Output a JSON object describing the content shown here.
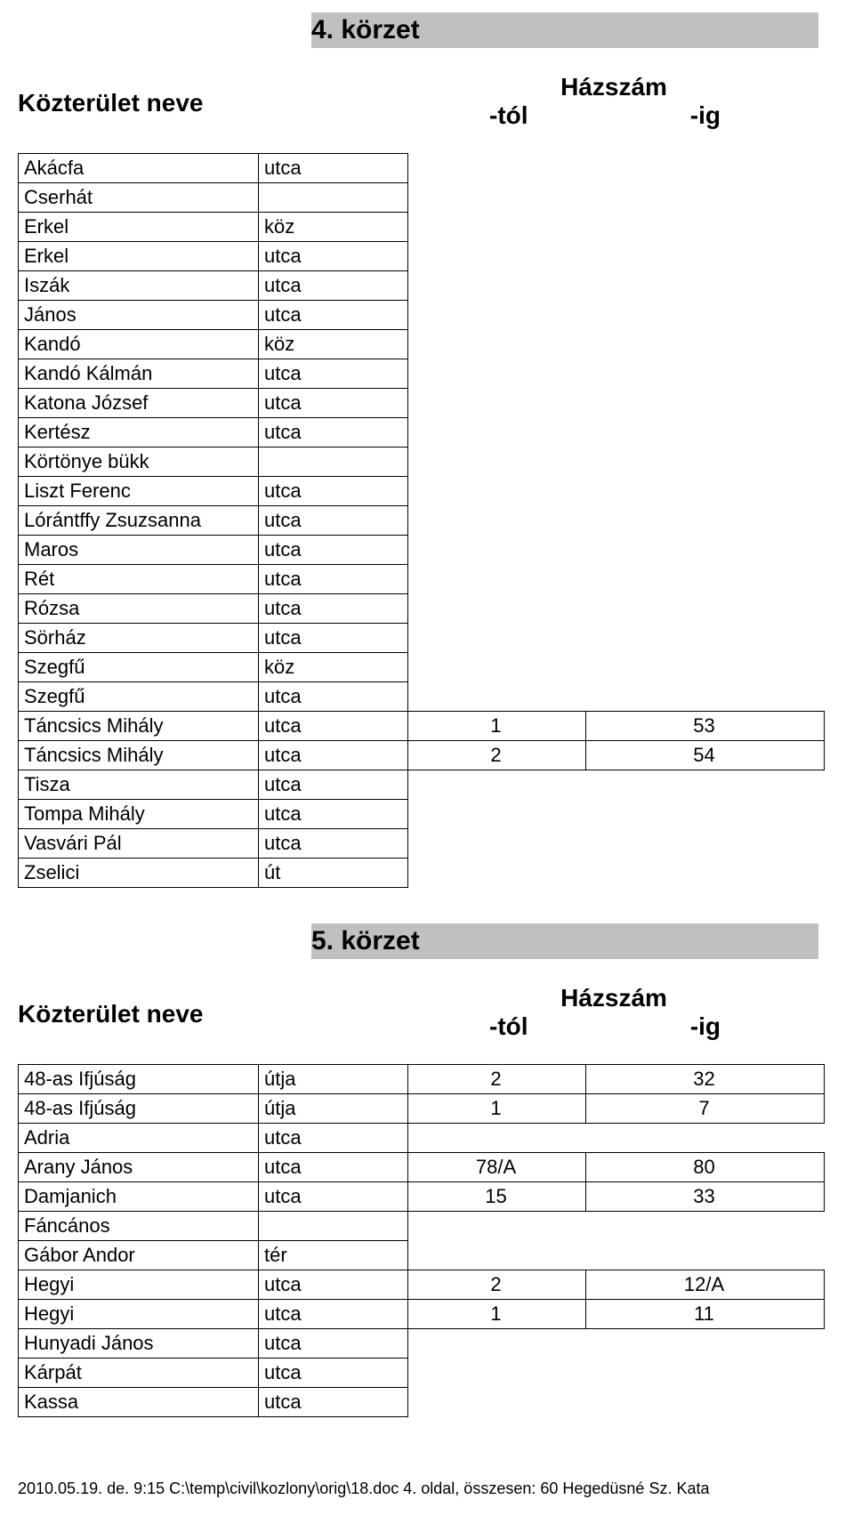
{
  "section1": {
    "title": "4. körzet",
    "heading_left": "Közterület neve",
    "heading_right_top": "Házszám",
    "heading_right_from": "-tól",
    "heading_right_to": "-ig",
    "rows": [
      {
        "name": "Akácfa",
        "type": "utca",
        "from": "",
        "to": ""
      },
      {
        "name": "Cserhát",
        "type": "",
        "from": "",
        "to": ""
      },
      {
        "name": "Erkel",
        "type": "köz",
        "from": "",
        "to": ""
      },
      {
        "name": "Erkel",
        "type": "utca",
        "from": "",
        "to": ""
      },
      {
        "name": "Iszák",
        "type": "utca",
        "from": "",
        "to": ""
      },
      {
        "name": "János",
        "type": "utca",
        "from": "",
        "to": ""
      },
      {
        "name": "Kandó",
        "type": "köz",
        "from": "",
        "to": ""
      },
      {
        "name": "Kandó Kálmán",
        "type": "utca",
        "from": "",
        "to": ""
      },
      {
        "name": "Katona József",
        "type": "utca",
        "from": "",
        "to": ""
      },
      {
        "name": "Kertész",
        "type": "utca",
        "from": "",
        "to": ""
      },
      {
        "name": "Körtönye bükk",
        "type": "",
        "from": "",
        "to": ""
      },
      {
        "name": "Liszt Ferenc",
        "type": "utca",
        "from": "",
        "to": ""
      },
      {
        "name": "Lórántffy Zsuzsanna",
        "type": "utca",
        "from": "",
        "to": ""
      },
      {
        "name": "Maros",
        "type": "utca",
        "from": "",
        "to": ""
      },
      {
        "name": "Rét",
        "type": "utca",
        "from": "",
        "to": ""
      },
      {
        "name": "Rózsa",
        "type": "utca",
        "from": "",
        "to": ""
      },
      {
        "name": "Sörház",
        "type": "utca",
        "from": "",
        "to": ""
      },
      {
        "name": "Szegfű",
        "type": "köz",
        "from": "",
        "to": ""
      },
      {
        "name": "Szegfű",
        "type": "utca",
        "from": "",
        "to": ""
      },
      {
        "name": "Táncsics Mihály",
        "type": "utca",
        "from": "1",
        "to": "53"
      },
      {
        "name": "Táncsics Mihály",
        "type": "utca",
        "from": "2",
        "to": "54"
      },
      {
        "name": "Tisza",
        "type": "utca",
        "from": "",
        "to": ""
      },
      {
        "name": "Tompa Mihály",
        "type": "utca",
        "from": "",
        "to": ""
      },
      {
        "name": "Vasvári Pál",
        "type": "utca",
        "from": "",
        "to": ""
      },
      {
        "name": "Zselici",
        "type": "út",
        "from": "",
        "to": ""
      }
    ]
  },
  "section2": {
    "title": "5. körzet",
    "heading_left": "Közterület neve",
    "heading_right_top": "Házszám",
    "heading_right_from": "-tól",
    "heading_right_to": "-ig",
    "rows": [
      {
        "name": "48-as Ifjúság",
        "type": "útja",
        "from": "2",
        "to": "32"
      },
      {
        "name": "48-as Ifjúság",
        "type": "útja",
        "from": "1",
        "to": "7"
      },
      {
        "name": "Adria",
        "type": "utca",
        "from": "",
        "to": ""
      },
      {
        "name": "Arany János",
        "type": "utca",
        "from": "78/A",
        "to": "80"
      },
      {
        "name": "Damjanich",
        "type": "utca",
        "from": "15",
        "to": "33"
      },
      {
        "name": "Fáncános",
        "type": "",
        "from": "",
        "to": ""
      },
      {
        "name": "Gábor Andor",
        "type": "tér",
        "from": "",
        "to": ""
      },
      {
        "name": "Hegyi",
        "type": "utca",
        "from": "2",
        "to": "12/A"
      },
      {
        "name": "Hegyi",
        "type": "utca",
        "from": "1",
        "to": "11"
      },
      {
        "name": "Hunyadi János",
        "type": "utca",
        "from": "",
        "to": ""
      },
      {
        "name": "Kárpát",
        "type": "utca",
        "from": "",
        "to": ""
      },
      {
        "name": "Kassa",
        "type": "utca",
        "from": "",
        "to": ""
      }
    ]
  },
  "footer": "2010.05.19.   de. 9:15  C:\\temp\\civil\\kozlony\\orig\\18.doc  4. oldal, összesen: 60  Hegedüsné Sz. Kata",
  "styles": {
    "title_bg": "#c0c0c0",
    "border_color": "#000000",
    "text_color": "#000000",
    "page_bg": "#ffffff",
    "title_fontsize": 30,
    "body_fontsize": 22,
    "heading_fontsize": 28,
    "footer_fontsize": 18
  }
}
